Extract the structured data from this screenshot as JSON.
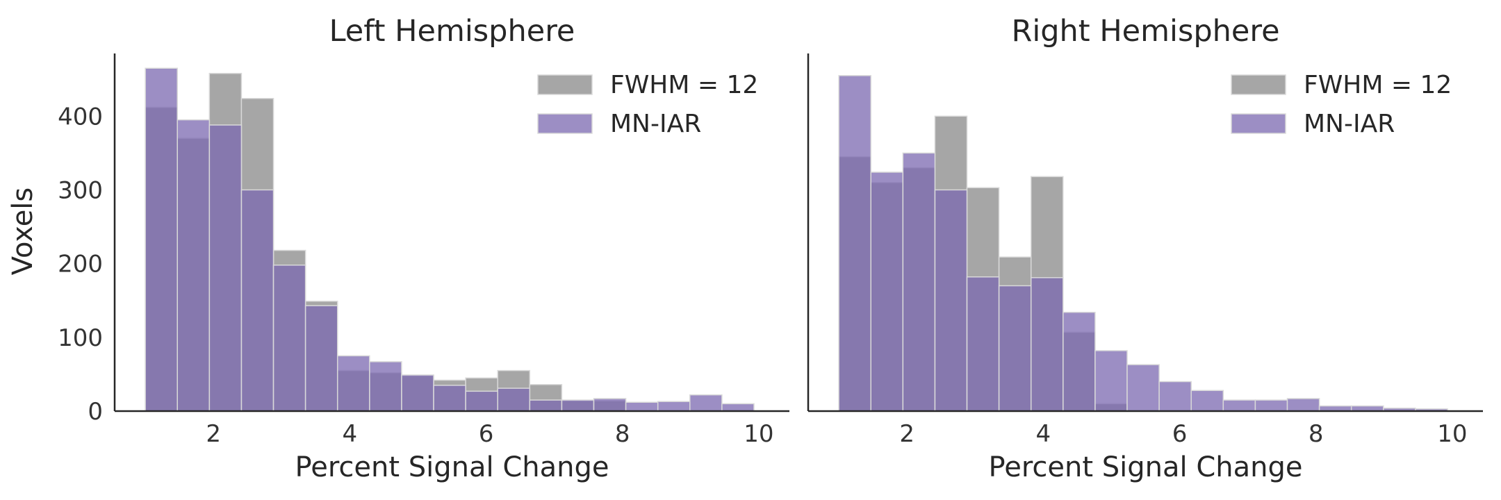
{
  "figure": {
    "ylabel": "Voxels"
  },
  "chart_data": [
    {
      "type": "bar",
      "title": "Left Hemisphere",
      "xlabel": "Percent Signal Change",
      "ylabel": "Voxels",
      "xlim": [
        0.55,
        10.45
      ],
      "ylim": [
        0,
        485
      ],
      "xticks": [
        2,
        4,
        6,
        8,
        10
      ],
      "yticks": [
        0,
        100,
        200,
        300,
        400
      ],
      "y_ticklabels_shown": true,
      "grid": false,
      "legend_position": "top-right",
      "bin_edges": [
        1.0,
        1.47,
        1.94,
        2.41,
        2.88,
        3.35,
        3.82,
        4.29,
        4.76,
        5.23,
        5.7,
        6.17,
        6.64,
        7.11,
        7.58,
        8.05,
        8.52,
        8.99,
        9.46,
        9.93
      ],
      "series": [
        {
          "name": "FWHM = 12",
          "color": "#808080",
          "alpha": 0.7,
          "values": [
            412,
            370,
            458,
            424,
            218,
            149,
            55,
            52,
            48,
            42,
            45,
            55,
            36,
            14,
            14,
            0,
            0,
            0,
            0
          ]
        },
        {
          "name": "MN-IAR",
          "color": "#7b68b0",
          "alpha": 0.75,
          "values": [
            465,
            395,
            388,
            300,
            198,
            143,
            75,
            67,
            49,
            35,
            27,
            31,
            15,
            15,
            17,
            12,
            13,
            22,
            10
          ]
        }
      ]
    },
    {
      "type": "bar",
      "title": "Right Hemisphere",
      "xlabel": "Percent Signal Change",
      "ylabel": "",
      "xlim": [
        0.55,
        10.45
      ],
      "ylim": [
        0,
        485
      ],
      "xticks": [
        2,
        4,
        6,
        8,
        10
      ],
      "yticks": [],
      "y_ticklabels_shown": false,
      "grid": false,
      "legend_position": "top-right",
      "bin_edges": [
        1.0,
        1.47,
        1.94,
        2.41,
        2.88,
        3.35,
        3.82,
        4.29,
        4.76,
        5.23,
        5.7,
        6.17,
        6.64,
        7.11,
        7.58,
        8.05,
        8.52,
        8.99,
        9.46,
        9.93
      ],
      "series": [
        {
          "name": "FWHM = 12",
          "color": "#808080",
          "alpha": 0.7,
          "values": [
            345,
            310,
            330,
            400,
            303,
            209,
            318,
            107,
            10,
            0,
            0,
            0,
            0,
            0,
            0,
            0,
            0,
            0,
            0
          ]
        },
        {
          "name": "MN-IAR",
          "color": "#7b68b0",
          "alpha": 0.75,
          "values": [
            455,
            324,
            350,
            300,
            182,
            170,
            181,
            134,
            82,
            63,
            40,
            28,
            15,
            15,
            17,
            7,
            7,
            4,
            3
          ]
        }
      ]
    }
  ]
}
